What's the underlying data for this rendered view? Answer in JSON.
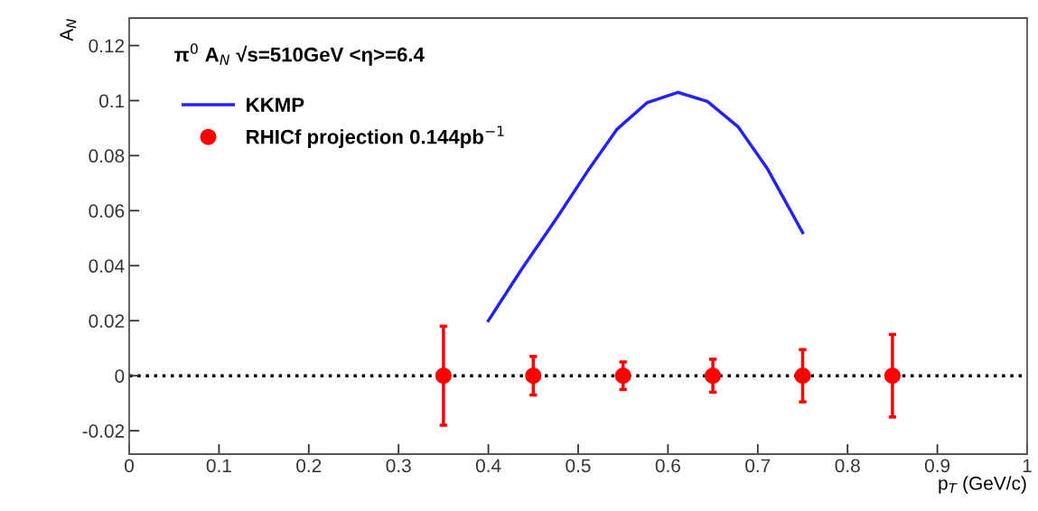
{
  "chart_data": {
    "type": "scatter",
    "xlabel": "p$_{T}$ (GeV/c)",
    "ylabel": "A$_{N}$",
    "annotations": [
      "π$^{0}$ A$_{N}$ √s=510GeV <η>=6.4"
    ],
    "series": [
      {
        "name": "KKMP",
        "type": "line",
        "color": "#2222ff",
        "marker": "none",
        "line_style": "solid",
        "x": [
          0.4,
          0.437,
          0.477,
          0.51,
          0.543,
          0.577,
          0.611,
          0.644,
          0.678,
          0.711,
          0.75
        ],
        "values": [
          0.02,
          0.0387,
          0.0577,
          0.0741,
          0.0895,
          0.0993,
          0.103,
          0.0997,
          0.0905,
          0.0751,
          0.052
        ]
      },
      {
        "name": "RHICf projection 0.144pb$^{−1}$",
        "color": "#ff0000",
        "marker": "circle",
        "x": [
          0.35,
          0.45,
          0.55,
          0.65,
          0.75,
          0.85
        ],
        "values": [
          0,
          0,
          0,
          0,
          0,
          0
        ],
        "errors": [
          0.018,
          0.007,
          0.005,
          0.006,
          0.0095,
          0.015
        ]
      }
    ],
    "ref_lines": [
      {
        "axis": "y",
        "value": 0,
        "color": "#000000",
        "line_style": "dotted"
      }
    ],
    "xlim": [
      0,
      1
    ],
    "xticks": [
      0,
      0.1,
      0.2,
      0.3,
      0.4,
      0.5,
      0.6,
      0.7,
      0.8,
      0.9,
      1
    ],
    "ylim": [
      -0.0285,
      0.13
    ],
    "yticks": [
      {
        "value": -0.02,
        "label": "-0.02"
      },
      0,
      0.02,
      0.04,
      0.06,
      0.08,
      0.1,
      0.12
    ],
    "grid": false,
    "legend": "top left"
  }
}
